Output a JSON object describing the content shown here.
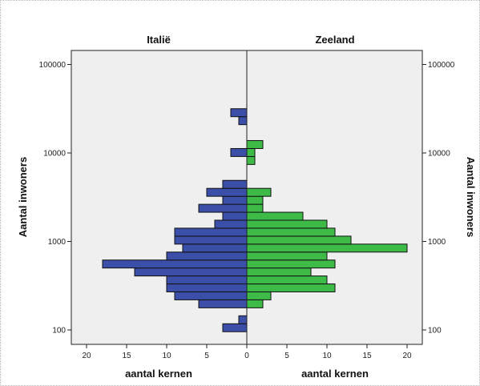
{
  "chart_data": {
    "type": "bar",
    "subtype": "population-pyramid (horizontal back-to-back histogram)",
    "yscale": "log",
    "ylabel": "Aantal inwoners",
    "yticks": [
      100,
      1000,
      10000,
      100000
    ],
    "ylim": [
      70,
      140000
    ],
    "xlabel_left": "aantal kernen",
    "xlabel_right": "aantal kernen",
    "xticks_left": [
      20,
      15,
      10,
      5,
      0
    ],
    "xticks_right": [
      0,
      5,
      10,
      15,
      20
    ],
    "xlim": [
      0,
      22
    ],
    "grid": false,
    "background": "#efefef",
    "bin_edges": [
      95.5,
      117.5,
      144.5,
      177.8,
      218.8,
      269.2,
      331.1,
      407.4,
      501.2,
      616.6,
      758.6,
      933.3,
      1148,
      1413,
      1738,
      2138,
      2630,
      3236,
      3981,
      4898,
      6026,
      7413,
      9120,
      11220,
      13800,
      16980,
      20890,
      25700,
      31620,
      38900,
      47860,
      58880
    ],
    "series": [
      {
        "name": "Italië",
        "color": "#3c4fa8",
        "side": "left",
        "values": [
          3,
          1,
          0,
          6,
          9,
          10,
          10,
          14,
          18,
          10,
          8,
          9,
          9,
          4,
          3,
          6,
          3,
          5,
          3,
          0,
          0,
          0,
          2,
          0,
          0,
          0,
          1,
          2,
          0,
          0,
          0
        ]
      },
      {
        "name": "Zeeland",
        "color": "#3dbb46",
        "side": "right",
        "values": [
          0,
          0,
          0,
          2,
          3,
          11,
          10,
          8,
          11,
          10,
          20,
          13,
          11,
          10,
          7,
          2,
          2,
          3,
          0,
          0,
          0,
          1,
          1,
          2,
          0,
          0,
          0,
          0,
          0,
          0,
          0
        ]
      }
    ]
  }
}
